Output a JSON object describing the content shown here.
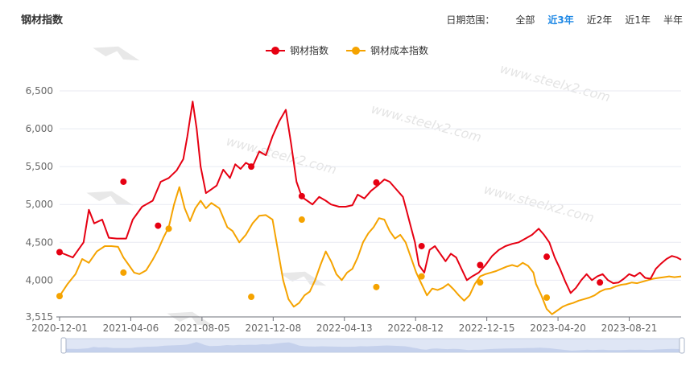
{
  "title": "钢材指数",
  "range": {
    "label": "日期范围：",
    "options": [
      "全部",
      "近3年",
      "近2年",
      "近1年",
      "半年"
    ],
    "active": 1
  },
  "watermark": "www.steelx2.com",
  "colors": {
    "steel": "#e60012",
    "cost": "#f5a300",
    "grid": "#e8eaf2",
    "axis": "#999999"
  },
  "chart_data": {
    "type": "line",
    "yticks": [
      3515,
      4000,
      4500,
      5000,
      5500,
      6000,
      6500
    ],
    "ytick_labels": [
      "3,515",
      "4,000",
      "4,500",
      "5,000",
      "5,500",
      "6,000",
      "6,500"
    ],
    "ylim": [
      3515,
      6700
    ],
    "xticks": [
      "2020-12-01",
      "2021-04-06",
      "2021-08-05",
      "2021-12-08",
      "2022-04-13",
      "2022-08-12",
      "2022-12-15",
      "2023-04-20",
      "2023-08-21"
    ],
    "series": [
      {
        "name": "钢材指数",
        "color": "#e60012",
        "values": [
          [
            0.0,
            4370
          ],
          [
            1.0,
            4300
          ],
          [
            1.8,
            4500
          ],
          [
            2.2,
            4930
          ],
          [
            2.6,
            4750
          ],
          [
            3.2,
            4800
          ],
          [
            3.7,
            4560
          ],
          [
            4.3,
            4550
          ],
          [
            5.0,
            4550
          ],
          [
            5.5,
            4800
          ],
          [
            6.2,
            4970
          ],
          [
            7.0,
            5050
          ],
          [
            7.6,
            5300
          ],
          [
            8.2,
            5350
          ],
          [
            8.8,
            5450
          ],
          [
            9.3,
            5600
          ],
          [
            9.6,
            5900
          ],
          [
            10.0,
            6360
          ],
          [
            10.3,
            6000
          ],
          [
            10.6,
            5500
          ],
          [
            11.0,
            5150
          ],
          [
            11.4,
            5200
          ],
          [
            11.8,
            5250
          ],
          [
            12.3,
            5460
          ],
          [
            12.8,
            5350
          ],
          [
            13.2,
            5530
          ],
          [
            13.6,
            5470
          ],
          [
            14.0,
            5550
          ],
          [
            14.5,
            5500
          ],
          [
            15.0,
            5700
          ],
          [
            15.5,
            5650
          ],
          [
            16.0,
            5900
          ],
          [
            16.5,
            6100
          ],
          [
            17.0,
            6250
          ],
          [
            17.4,
            5800
          ],
          [
            17.8,
            5300
          ],
          [
            18.2,
            5100
          ],
          [
            18.6,
            5050
          ],
          [
            19.0,
            5000
          ],
          [
            19.5,
            5100
          ],
          [
            20.0,
            5050
          ],
          [
            20.4,
            5000
          ],
          [
            21.0,
            4970
          ],
          [
            21.5,
            4970
          ],
          [
            22.0,
            4990
          ],
          [
            22.4,
            5130
          ],
          [
            22.9,
            5080
          ],
          [
            23.4,
            5180
          ],
          [
            23.9,
            5250
          ],
          [
            24.4,
            5330
          ],
          [
            24.8,
            5300
          ],
          [
            25.3,
            5200
          ],
          [
            25.8,
            5100
          ],
          [
            26.1,
            4900
          ],
          [
            26.4,
            4700
          ],
          [
            26.7,
            4500
          ],
          [
            27.0,
            4200
          ],
          [
            27.4,
            4100
          ],
          [
            27.8,
            4400
          ],
          [
            28.2,
            4450
          ],
          [
            28.6,
            4350
          ],
          [
            29.0,
            4250
          ],
          [
            29.4,
            4350
          ],
          [
            29.8,
            4300
          ],
          [
            30.2,
            4150
          ],
          [
            30.6,
            4000
          ],
          [
            31.0,
            4050
          ],
          [
            31.5,
            4100
          ],
          [
            32.0,
            4200
          ],
          [
            32.5,
            4320
          ],
          [
            33.0,
            4400
          ],
          [
            33.5,
            4450
          ],
          [
            34.0,
            4480
          ],
          [
            34.5,
            4500
          ],
          [
            35.0,
            4550
          ],
          [
            35.5,
            4600
          ],
          [
            36.0,
            4680
          ],
          [
            36.4,
            4600
          ],
          [
            36.8,
            4500
          ],
          [
            37.2,
            4300
          ],
          [
            37.6,
            4150
          ],
          [
            38.0,
            3980
          ],
          [
            38.4,
            3830
          ],
          [
            38.8,
            3900
          ],
          [
            39.2,
            4000
          ],
          [
            39.6,
            4080
          ],
          [
            40.0,
            4000
          ],
          [
            40.4,
            4050
          ],
          [
            40.8,
            4080
          ],
          [
            41.2,
            4000
          ],
          [
            41.6,
            3960
          ],
          [
            42.0,
            3970
          ],
          [
            42.4,
            4020
          ],
          [
            42.8,
            4080
          ],
          [
            43.2,
            4050
          ],
          [
            43.6,
            4100
          ],
          [
            44.0,
            4030
          ],
          [
            44.4,
            4020
          ],
          [
            44.8,
            4150
          ],
          [
            45.2,
            4220
          ],
          [
            45.6,
            4280
          ],
          [
            46.0,
            4320
          ],
          [
            46.4,
            4300
          ],
          [
            46.7,
            4270
          ]
        ],
        "markers": [
          [
            0.0,
            4370
          ],
          [
            4.8,
            5300
          ],
          [
            7.4,
            4720
          ],
          [
            14.4,
            5500
          ],
          [
            18.2,
            5110
          ],
          [
            23.8,
            5290
          ],
          [
            27.2,
            4450
          ],
          [
            31.6,
            4200
          ],
          [
            36.6,
            4310
          ],
          [
            40.6,
            3970
          ]
        ]
      },
      {
        "name": "钢材成本指数",
        "color": "#f5a300",
        "values": [
          [
            0.0,
            3790
          ],
          [
            0.6,
            3950
          ],
          [
            1.2,
            4080
          ],
          [
            1.7,
            4280
          ],
          [
            2.2,
            4230
          ],
          [
            2.8,
            4380
          ],
          [
            3.4,
            4450
          ],
          [
            3.9,
            4450
          ],
          [
            4.4,
            4440
          ],
          [
            4.8,
            4300
          ],
          [
            5.2,
            4200
          ],
          [
            5.6,
            4100
          ],
          [
            6.0,
            4080
          ],
          [
            6.5,
            4130
          ],
          [
            7.0,
            4270
          ],
          [
            7.4,
            4400
          ],
          [
            7.8,
            4560
          ],
          [
            8.2,
            4700
          ],
          [
            8.6,
            5000
          ],
          [
            9.0,
            5230
          ],
          [
            9.4,
            4950
          ],
          [
            9.8,
            4780
          ],
          [
            10.2,
            4950
          ],
          [
            10.6,
            5050
          ],
          [
            11.0,
            4950
          ],
          [
            11.4,
            5020
          ],
          [
            12.0,
            4950
          ],
          [
            12.6,
            4700
          ],
          [
            13.0,
            4650
          ],
          [
            13.5,
            4500
          ],
          [
            14.0,
            4600
          ],
          [
            14.5,
            4750
          ],
          [
            15.0,
            4850
          ],
          [
            15.5,
            4860
          ],
          [
            16.0,
            4800
          ],
          [
            16.4,
            4400
          ],
          [
            16.8,
            4000
          ],
          [
            17.2,
            3750
          ],
          [
            17.6,
            3650
          ],
          [
            18.0,
            3700
          ],
          [
            18.4,
            3800
          ],
          [
            18.8,
            3850
          ],
          [
            19.2,
            4000
          ],
          [
            19.6,
            4200
          ],
          [
            20.0,
            4380
          ],
          [
            20.4,
            4250
          ],
          [
            20.8,
            4080
          ],
          [
            21.2,
            4000
          ],
          [
            21.6,
            4100
          ],
          [
            22.0,
            4150
          ],
          [
            22.4,
            4300
          ],
          [
            22.8,
            4500
          ],
          [
            23.2,
            4620
          ],
          [
            23.6,
            4700
          ],
          [
            24.0,
            4820
          ],
          [
            24.4,
            4800
          ],
          [
            24.8,
            4650
          ],
          [
            25.2,
            4550
          ],
          [
            25.6,
            4600
          ],
          [
            26.0,
            4500
          ],
          [
            26.4,
            4300
          ],
          [
            26.8,
            4100
          ],
          [
            27.2,
            3950
          ],
          [
            27.6,
            3800
          ],
          [
            28.0,
            3890
          ],
          [
            28.4,
            3870
          ],
          [
            28.8,
            3900
          ],
          [
            29.2,
            3950
          ],
          [
            29.6,
            3880
          ],
          [
            30.0,
            3800
          ],
          [
            30.4,
            3730
          ],
          [
            30.8,
            3800
          ],
          [
            31.2,
            3950
          ],
          [
            31.6,
            4050
          ],
          [
            32.0,
            4080
          ],
          [
            32.4,
            4100
          ],
          [
            32.8,
            4120
          ],
          [
            33.2,
            4150
          ],
          [
            33.6,
            4180
          ],
          [
            34.0,
            4200
          ],
          [
            34.4,
            4180
          ],
          [
            34.8,
            4230
          ],
          [
            35.2,
            4190
          ],
          [
            35.6,
            4100
          ],
          [
            35.8,
            3950
          ],
          [
            36.2,
            3800
          ],
          [
            36.6,
            3620
          ],
          [
            37.0,
            3550
          ],
          [
            37.4,
            3600
          ],
          [
            37.8,
            3650
          ],
          [
            38.2,
            3680
          ],
          [
            38.6,
            3700
          ],
          [
            39.0,
            3730
          ],
          [
            39.4,
            3750
          ],
          [
            39.8,
            3770
          ],
          [
            40.2,
            3800
          ],
          [
            40.6,
            3850
          ],
          [
            41.0,
            3880
          ],
          [
            41.4,
            3890
          ],
          [
            41.8,
            3920
          ],
          [
            42.2,
            3940
          ],
          [
            42.6,
            3950
          ],
          [
            43.0,
            3970
          ],
          [
            43.4,
            3960
          ],
          [
            43.8,
            3980
          ],
          [
            44.2,
            4000
          ],
          [
            44.6,
            4020
          ],
          [
            45.0,
            4030
          ],
          [
            45.4,
            4040
          ],
          [
            45.8,
            4050
          ],
          [
            46.2,
            4040
          ],
          [
            46.7,
            4050
          ]
        ],
        "markers": [
          [
            0.0,
            3790
          ],
          [
            4.8,
            4100
          ],
          [
            8.2,
            4680
          ],
          [
            14.4,
            3780
          ],
          [
            18.2,
            4800
          ],
          [
            23.8,
            3910
          ],
          [
            27.2,
            4050
          ],
          [
            31.6,
            3970
          ],
          [
            36.6,
            3770
          ]
        ]
      }
    ]
  }
}
